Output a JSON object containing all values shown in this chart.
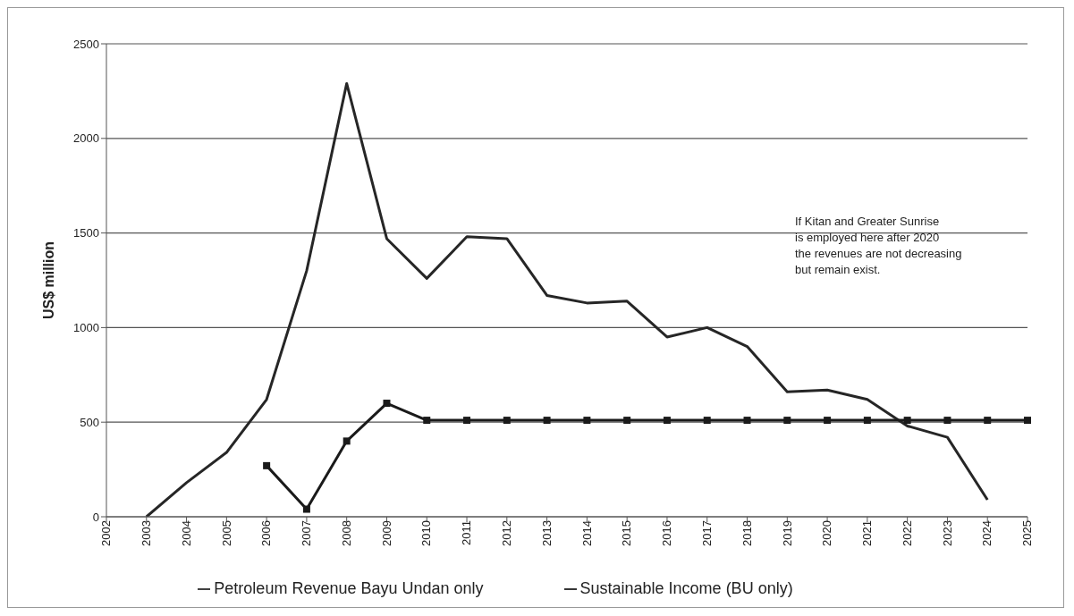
{
  "chart_data": {
    "type": "line",
    "ylabel": "US$ million",
    "categories": [
      "2002",
      "2003",
      "2004",
      "2005",
      "2006",
      "2007",
      "2008",
      "2009",
      "2010",
      "2011",
      "2012",
      "2013",
      "2014",
      "2015",
      "2016",
      "2017",
      "2018",
      "2019",
      "2020",
      "2021",
      "2022",
      "2023",
      "2024",
      "2025"
    ],
    "series": [
      {
        "name": "Petroleum Revenue Bayu Undan only",
        "color": "#262626",
        "marker": "none",
        "values": [
          null,
          0,
          180,
          340,
          620,
          1300,
          2290,
          1470,
          1260,
          1480,
          1470,
          1170,
          1130,
          1140,
          950,
          1000,
          900,
          660,
          670,
          620,
          480,
          420,
          90,
          null
        ]
      },
      {
        "name": "Sustainable Income (BU only)",
        "color": "#1a1a1a",
        "marker": "square",
        "values": [
          null,
          null,
          null,
          null,
          270,
          40,
          400,
          600,
          510,
          510,
          510,
          510,
          510,
          510,
          510,
          510,
          510,
          510,
          510,
          510,
          510,
          510,
          510,
          510
        ]
      }
    ],
    "ylim": [
      0,
      2500
    ],
    "yticks": [
      0,
      500,
      1000,
      1500,
      2000,
      2500
    ],
    "grid": "y",
    "legend": "bottom",
    "line_style": "solid",
    "annotations": [
      "If Kitan and Greater Sunrise\nis employed here after 2020\nthe revenues  are not decreasing\nbut remain exist."
    ]
  }
}
